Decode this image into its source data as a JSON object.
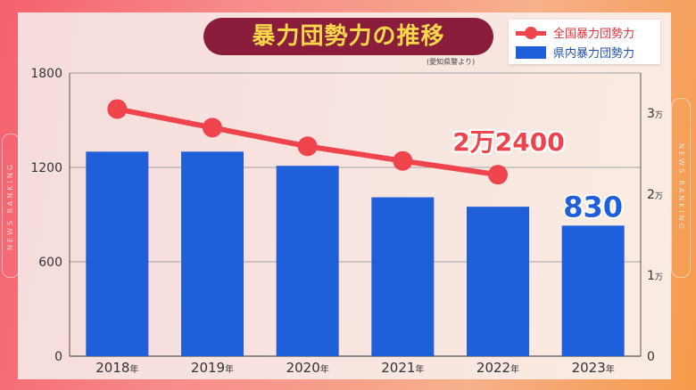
{
  "title": "暴力団勢力の推移",
  "source": "(愛知県警より)",
  "side_text": "NEWS RANKING",
  "legend": [
    {
      "label": "全国暴力団勢力",
      "color": "#f0444c",
      "type": "line"
    },
    {
      "label": "県内暴力団勢力",
      "color": "#1f5fd9",
      "type": "bar"
    }
  ],
  "chart_data": {
    "type": "bar+line",
    "title": "暴力団勢力の推移",
    "categories": [
      "2018",
      "2019",
      "2020",
      "2021",
      "2022",
      "2023"
    ],
    "category_suffix": "年",
    "series": [
      {
        "name": "県内暴力団勢力",
        "type": "bar",
        "axis": "left",
        "color": "#1f5fd9",
        "values": [
          1300,
          1300,
          1210,
          1010,
          950,
          830
        ]
      },
      {
        "name": "全国暴力団勢力",
        "type": "line",
        "axis": "right",
        "color": "#f0444c",
        "values": [
          30500,
          28200,
          25900,
          24100,
          22400,
          null
        ]
      }
    ],
    "left_axis": {
      "ylim": [
        0,
        1800
      ],
      "ticks": [
        "0",
        "600",
        "1200",
        "1800"
      ],
      "tick_values": [
        0,
        600,
        1200,
        1800
      ]
    },
    "right_axis": {
      "ylim": [
        0,
        35000
      ],
      "ticks": [
        "0",
        "1",
        "2",
        "3"
      ],
      "tick_values": [
        0,
        10000,
        20000,
        30000
      ],
      "unit": "万"
    },
    "grid": true,
    "data_labels": {
      "line": {
        "index": 4,
        "text": "2万2400",
        "color": "#f0444c"
      },
      "bar": {
        "index": 5,
        "text": "830",
        "color": "#1f5fd9"
      }
    }
  }
}
